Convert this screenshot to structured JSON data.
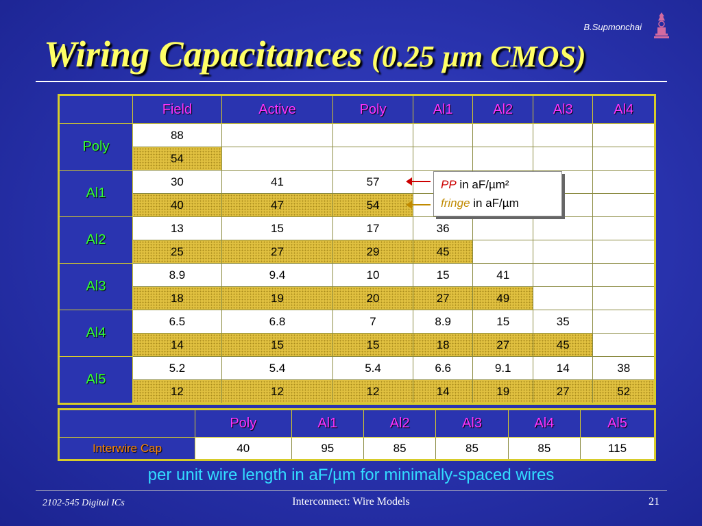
{
  "header": {
    "author": "B.Supmonchai",
    "title_main": "Wiring Capacitances",
    "title_sub": "(0.25 µm CMOS)"
  },
  "capacitance_table": {
    "columns": [
      "Field",
      "Active",
      "Poly",
      "Al1",
      "Al2",
      "Al3",
      "Al4"
    ],
    "rows": [
      {
        "layer": "Poly",
        "pp": [
          "88",
          "",
          "",
          "",
          "",
          "",
          ""
        ],
        "fringe": [
          "54",
          "",
          "",
          "",
          "",
          "",
          ""
        ]
      },
      {
        "layer": "Al1",
        "pp": [
          "30",
          "41",
          "57",
          "",
          "",
          "",
          ""
        ],
        "fringe": [
          "40",
          "47",
          "54",
          "",
          "",
          "",
          ""
        ]
      },
      {
        "layer": "Al2",
        "pp": [
          "13",
          "15",
          "17",
          "36",
          "",
          "",
          ""
        ],
        "fringe": [
          "25",
          "27",
          "29",
          "45",
          "",
          "",
          ""
        ]
      },
      {
        "layer": "Al3",
        "pp": [
          "8.9",
          "9.4",
          "10",
          "15",
          "41",
          "",
          ""
        ],
        "fringe": [
          "18",
          "19",
          "20",
          "27",
          "49",
          "",
          ""
        ]
      },
      {
        "layer": "Al4",
        "pp": [
          "6.5",
          "6.8",
          "7",
          "8.9",
          "15",
          "35",
          ""
        ],
        "fringe": [
          "14",
          "15",
          "15",
          "18",
          "27",
          "45",
          ""
        ]
      },
      {
        "layer": "Al5",
        "pp": [
          "5.2",
          "5.4",
          "5.4",
          "6.6",
          "9.1",
          "14",
          "38"
        ],
        "fringe": [
          "12",
          "12",
          "12",
          "14",
          "19",
          "27",
          "52"
        ]
      }
    ]
  },
  "legend": {
    "pp_label": "PP",
    "pp_unit": "in aF/µm²",
    "fringe_label": "fringe",
    "fringe_unit": "in aF/µm",
    "pp_color": "#cc0000",
    "fringe_color": "#c08a00"
  },
  "interwire_table": {
    "row_label": "Interwire Cap",
    "columns": [
      "Poly",
      "Al1",
      "Al2",
      "Al3",
      "Al4",
      "Al5"
    ],
    "values": [
      "40",
      "95",
      "85",
      "85",
      "85",
      "115"
    ]
  },
  "note": "per unit wire length in aF/µm for minimally-spaced wires",
  "footer": {
    "course": "2102-545 Digital ICs",
    "topic": "Interconnect: Wire Models",
    "page": "21"
  },
  "colors": {
    "background": "#2a34b0",
    "title": "#ffff66",
    "column_header": "#ff33ff",
    "row_header": "#33ff33",
    "interwire_label": "#ff8800",
    "note": "#33ddff",
    "fringe_fill": "#e0c040"
  }
}
